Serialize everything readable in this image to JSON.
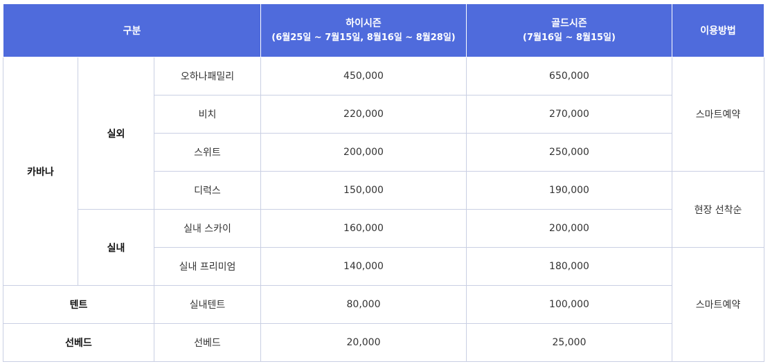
{
  "header": {
    "category": "구분",
    "high_season": {
      "name": "하이시즌",
      "range": "(6월25일 ~ 7월15일, 8월16일 ~ 8월28일)"
    },
    "gold_season": {
      "name": "골드시즌",
      "range": "(7월16일 ~ 8월15일)"
    },
    "usage": "이용방법"
  },
  "groups": {
    "cabana": "카바나",
    "outdoor": "실외",
    "indoor": "실내",
    "tent": "텐트",
    "sunbed": "선베드"
  },
  "rows": [
    {
      "type": "오하나패밀리",
      "high": "450,000",
      "gold": "650,000"
    },
    {
      "type": "비치",
      "high": "220,000",
      "gold": "270,000"
    },
    {
      "type": "스위트",
      "high": "200,000",
      "gold": "250,000"
    },
    {
      "type": "디럭스",
      "high": "150,000",
      "gold": "190,000"
    },
    {
      "type": "실내 스카이",
      "high": "160,000",
      "gold": "200,000"
    },
    {
      "type": "실내 프리미엄",
      "high": "140,000",
      "gold": "180,000"
    },
    {
      "type": "실내텐트",
      "high": "80,000",
      "gold": "100,000"
    },
    {
      "type": "선베드",
      "high": "20,000",
      "gold": "25,000"
    }
  ],
  "usage": {
    "smart_reservation_1": "스마트예약",
    "onsite_first_come": "현장 선착순",
    "smart_reservation_2": "스마트예약"
  }
}
